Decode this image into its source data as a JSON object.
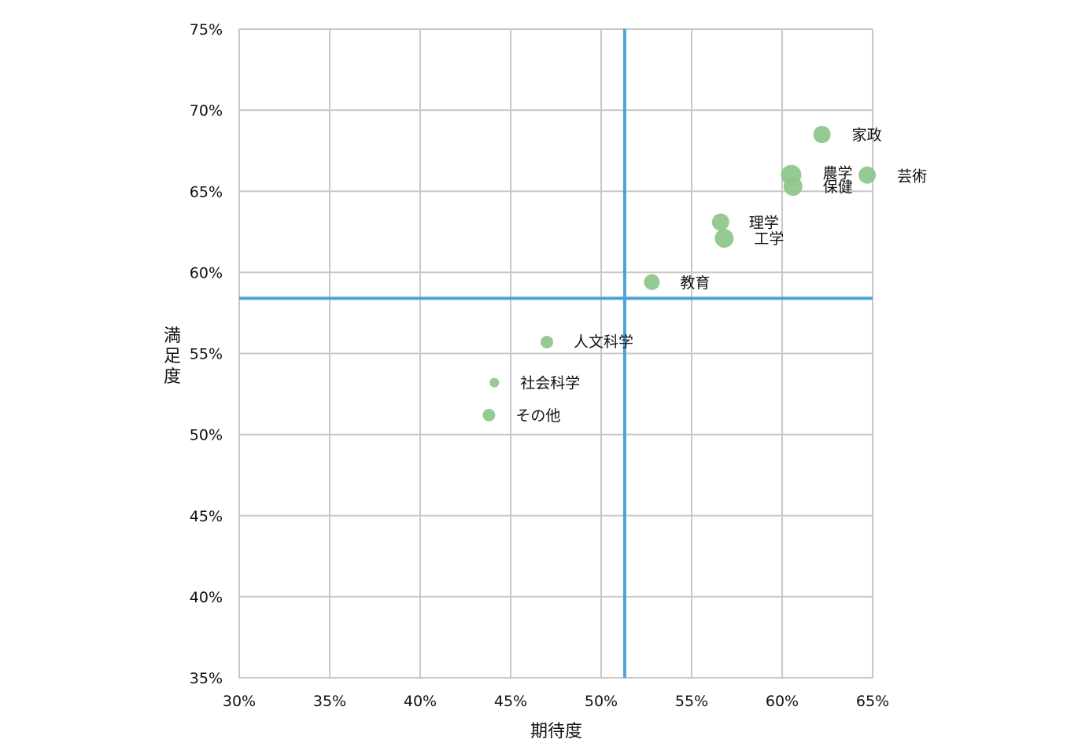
{
  "chart_data": {
    "type": "scatter",
    "title": "",
    "xlabel": "期待度",
    "ylabel": "満足度",
    "xlim": [
      0.3,
      0.65
    ],
    "ylim": [
      0.35,
      0.75
    ],
    "x_ticks": [
      0.3,
      0.35,
      0.4,
      0.45,
      0.5,
      0.55,
      0.6,
      0.65
    ],
    "y_ticks": [
      0.35,
      0.4,
      0.45,
      0.5,
      0.55,
      0.6,
      0.65,
      0.7,
      0.75
    ],
    "x_tick_labels": [
      "30%",
      "35%",
      "40%",
      "45%",
      "50%",
      "55%",
      "60%",
      "65%"
    ],
    "y_tick_labels": [
      "35%",
      "40%",
      "45%",
      "50%",
      "55%",
      "60%",
      "65%",
      "70%",
      "75%"
    ],
    "grid": true,
    "reference_lines": {
      "x": 0.513,
      "y": 0.584,
      "color": "#4aa3d8"
    },
    "point_color": "#8dc58a",
    "points": [
      {
        "label": "家政",
        "x": 0.622,
        "y": 0.685,
        "size": 11
      },
      {
        "label": "芸術",
        "x": 0.647,
        "y": 0.66,
        "size": 11
      },
      {
        "label": "農学",
        "x": 0.605,
        "y": 0.66,
        "size": 13
      },
      {
        "label": "保健",
        "x": 0.606,
        "y": 0.653,
        "size": 12
      },
      {
        "label": "理学",
        "x": 0.566,
        "y": 0.631,
        "size": 11
      },
      {
        "label": "工学",
        "x": 0.568,
        "y": 0.621,
        "size": 12
      },
      {
        "label": "教育",
        "x": 0.528,
        "y": 0.594,
        "size": 10
      },
      {
        "label": "人文科学",
        "x": 0.47,
        "y": 0.557,
        "size": 8
      },
      {
        "label": "社会科学",
        "x": 0.441,
        "y": 0.532,
        "size": 6
      },
      {
        "label": "その他",
        "x": 0.438,
        "y": 0.512,
        "size": 8
      }
    ]
  }
}
